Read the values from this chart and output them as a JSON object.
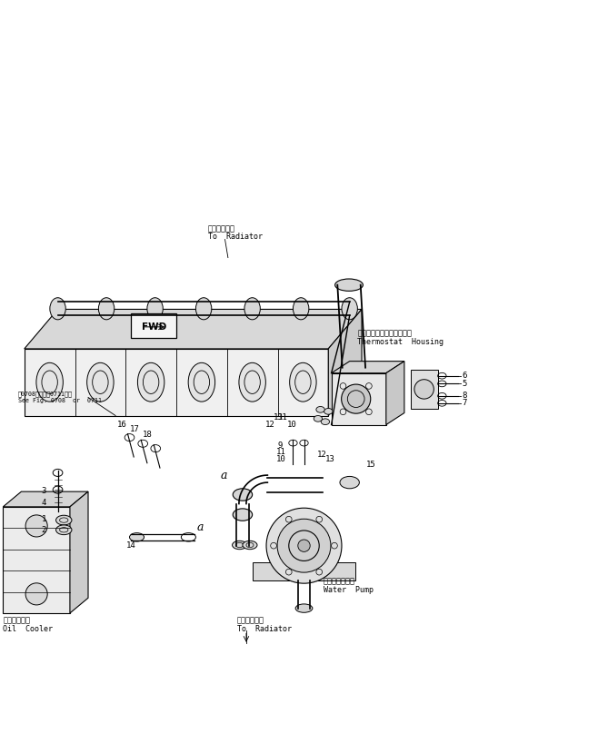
{
  "bg_color": "#ffffff",
  "line_color": "#000000",
  "fig_width": 6.69,
  "fig_height": 8.08,
  "dpi": 100,
  "labels": {
    "to_radiator_top_jp": "ラジエータへ",
    "to_radiator_top_en": "To  Radiator",
    "thermostat_jp": "サーモスタットハウジング",
    "thermostat_en": "Thermostat  Housing",
    "water_pump_jp": "ウォータポンプ",
    "water_pump_en": "Water  Pump",
    "to_radiator_bot_jp": "ラジエータへ",
    "to_radiator_bot_en": "To  Radiator",
    "oil_cooler_jp": "オイルクーラ",
    "oil_cooler_en": "Oil  Cooler",
    "see_fig_jp": "図0708または図0711参照",
    "see_fig_en": "See Fig. 0708  or  0711",
    "fwd_label": "FWD",
    "label_a": "a"
  }
}
